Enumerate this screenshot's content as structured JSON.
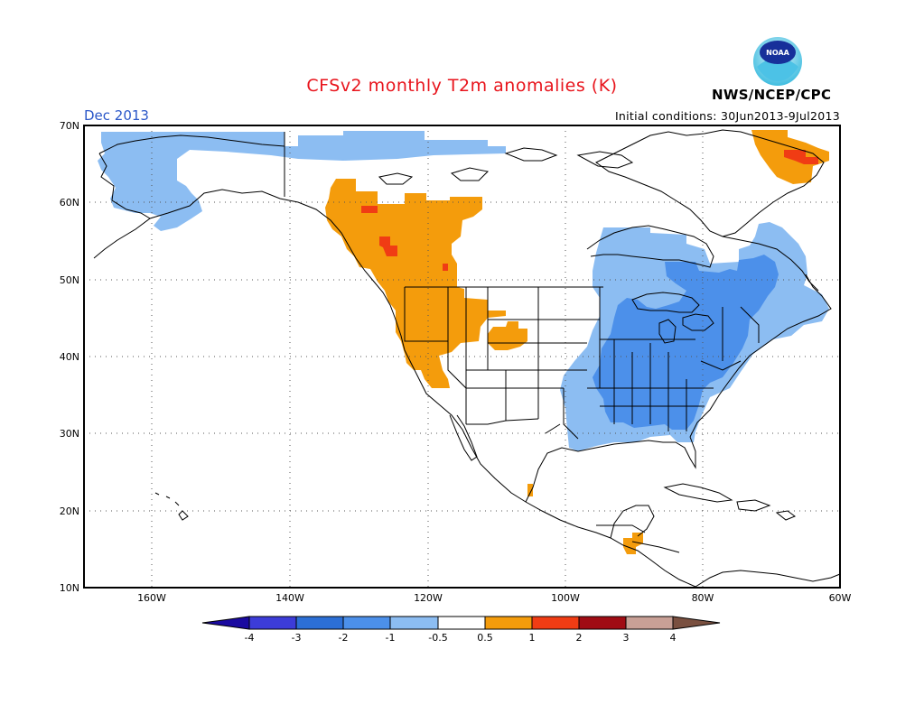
{
  "title": "CFSv2 monthly T2m anomalies (K)",
  "month_label": "Dec 2013",
  "initial_conditions": "Initial conditions: 30Jun2013-9Jul2013",
  "agency": "NWS/NCEP/CPC",
  "logo_text": "NOAA",
  "colors": {
    "title": "#e8141c",
    "month": "#2a57c8",
    "c_lt_m4": "#1a0aa0",
    "c_m4_m3": "#3c3cd8",
    "c_m3_m2": "#2c6fd6",
    "c_m2_m1": "#4c90ea",
    "c_m1_m05": "#8cbdf2",
    "c_neutral": "#ffffff",
    "c_05_1": "#f49c0c",
    "c_1_2": "#f03c14",
    "c_2_3": "#a00c14",
    "c_3_4": "#c8a096",
    "c_gt_4": "#7a5040"
  },
  "map": {
    "lat_labels": [
      "70N",
      "60N",
      "50N",
      "40N",
      "30N",
      "20N",
      "10N"
    ],
    "lon_labels": [
      "160W",
      "140W",
      "120W",
      "100W",
      "80W",
      "60W"
    ],
    "lat_extent": [
      10,
      70
    ],
    "lon_extent": [
      -170,
      -60
    ]
  },
  "colorbar": {
    "labels": [
      "-4",
      "-3",
      "-2",
      "-1",
      "-0.5",
      "0.5",
      "1",
      "2",
      "3",
      "4"
    ]
  }
}
